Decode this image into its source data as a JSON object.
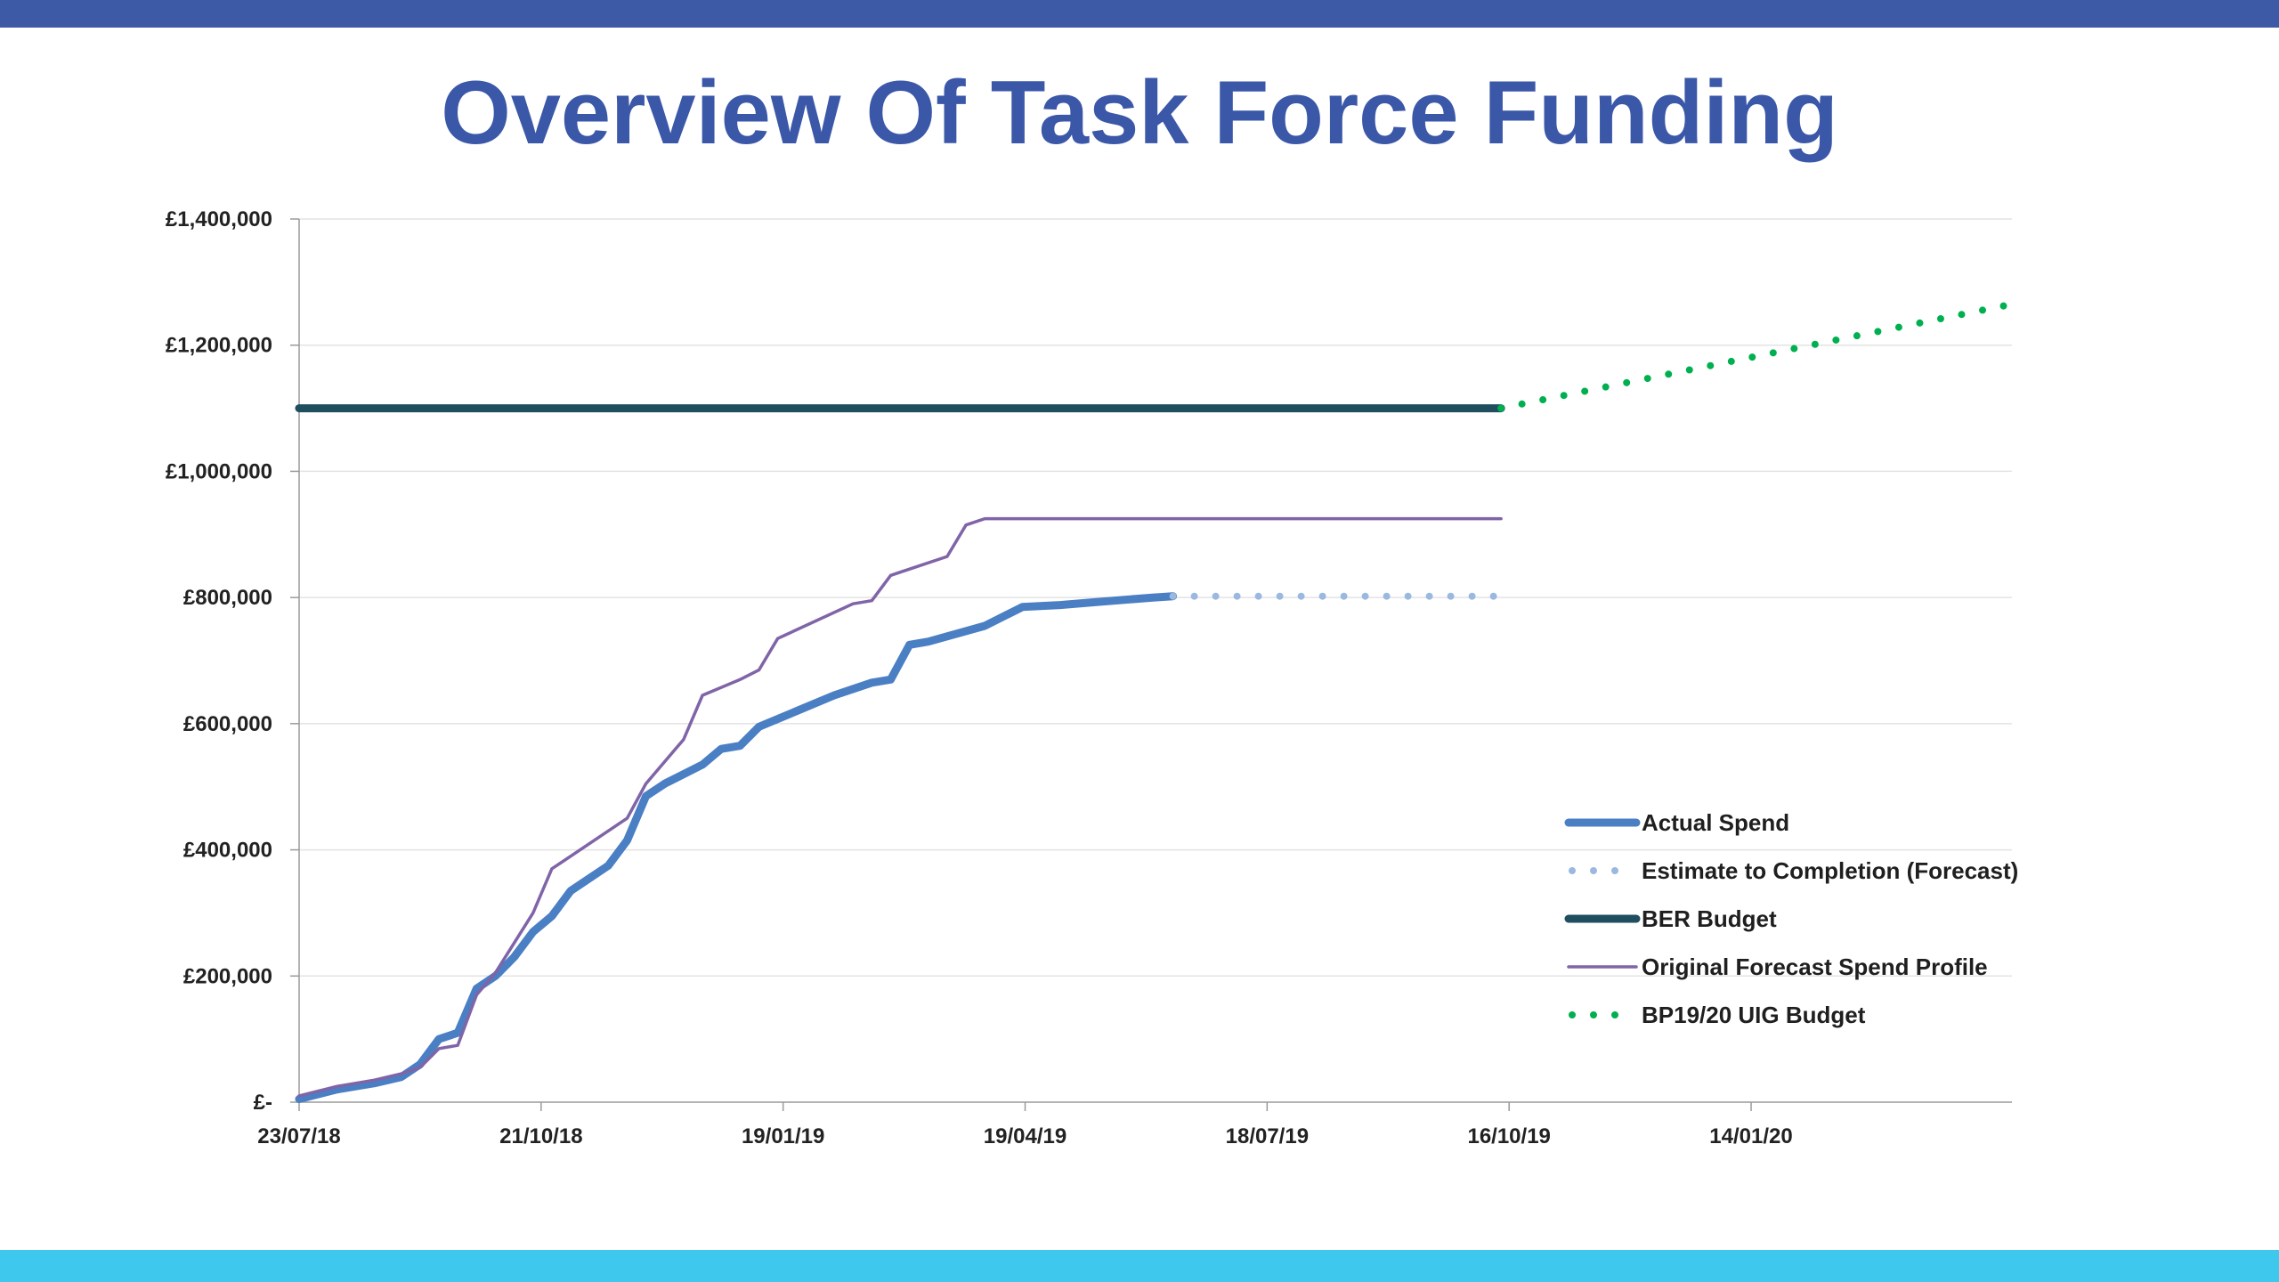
{
  "slide": {
    "title": "Overview Of Task Force Funding",
    "colors": {
      "top_band": "#3d5aa6",
      "bottom_band": "#3fc8ee",
      "title": "#3b57a8"
    }
  },
  "chart_data": {
    "type": "line",
    "title": "",
    "xlabel": "",
    "ylabel": "",
    "x_axis": {
      "type": "date",
      "range": [
        "2018-07-23",
        "2020-04-20"
      ],
      "tick_values": [
        "2018-07-23",
        "2018-10-21",
        "2019-01-19",
        "2019-04-19",
        "2019-07-18",
        "2019-10-16",
        "2020-01-14"
      ],
      "tick_labels": [
        "23/07/18",
        "21/10/18",
        "19/01/19",
        "19/04/19",
        "18/07/19",
        "16/10/19",
        "14/01/20"
      ]
    },
    "y_axis": {
      "range": [
        0,
        1400000
      ],
      "tick_values": [
        0,
        200000,
        400000,
        600000,
        800000,
        1000000,
        1200000,
        1400000
      ],
      "tick_labels": [
        "£-",
        "£200,000",
        "£400,000",
        "£600,000",
        "£800,000",
        "£1,000,000",
        "£1,200,000",
        "£1,400,000"
      ]
    },
    "grid": "horizontal",
    "legend_position": "bottom-right",
    "series": [
      {
        "name": "Actual Spend",
        "color": "#4a7fc4",
        "style": "solid-thick",
        "points": [
          [
            "2018-07-23",
            5000
          ],
          [
            "2018-08-06",
            20000
          ],
          [
            "2018-08-20",
            30000
          ],
          [
            "2018-08-30",
            40000
          ],
          [
            "2018-09-06",
            60000
          ],
          [
            "2018-09-13",
            100000
          ],
          [
            "2018-09-20",
            110000
          ],
          [
            "2018-09-27",
            180000
          ],
          [
            "2018-10-04",
            200000
          ],
          [
            "2018-10-11",
            230000
          ],
          [
            "2018-10-18",
            270000
          ],
          [
            "2018-10-25",
            295000
          ],
          [
            "2018-11-01",
            335000
          ],
          [
            "2018-11-15",
            375000
          ],
          [
            "2018-11-22",
            415000
          ],
          [
            "2018-11-29",
            485000
          ],
          [
            "2018-12-06",
            505000
          ],
          [
            "2018-12-20",
            535000
          ],
          [
            "2018-12-27",
            560000
          ],
          [
            "2019-01-03",
            565000
          ],
          [
            "2019-01-10",
            595000
          ],
          [
            "2019-01-24",
            620000
          ],
          [
            "2019-02-07",
            645000
          ],
          [
            "2019-02-21",
            665000
          ],
          [
            "2019-02-28",
            670000
          ],
          [
            "2019-03-07",
            725000
          ],
          [
            "2019-03-14",
            730000
          ],
          [
            "2019-04-04",
            755000
          ],
          [
            "2019-04-11",
            770000
          ],
          [
            "2019-04-18",
            785000
          ],
          [
            "2019-05-02",
            788000
          ],
          [
            "2019-05-16",
            793000
          ],
          [
            "2019-06-06",
            800000
          ],
          [
            "2019-06-13",
            802000
          ]
        ]
      },
      {
        "name": "Estimate to Completion (Forecast)",
        "color": "#9bb9e0",
        "style": "dotted",
        "points": [
          [
            "2019-06-13",
            802000
          ],
          [
            "2019-10-13",
            802000
          ]
        ]
      },
      {
        "name": "BER Budget",
        "color": "#1f4e5f",
        "style": "solid-thick",
        "points": [
          [
            "2018-07-23",
            1100000
          ],
          [
            "2019-10-13",
            1100000
          ]
        ]
      },
      {
        "name": "Original Forecast Spend Profile",
        "color": "#8064a8",
        "style": "solid-thin",
        "points": [
          [
            "2018-07-23",
            10000
          ],
          [
            "2018-08-06",
            25000
          ],
          [
            "2018-08-20",
            35000
          ],
          [
            "2018-08-30",
            45000
          ],
          [
            "2018-09-06",
            55000
          ],
          [
            "2018-09-13",
            85000
          ],
          [
            "2018-09-20",
            90000
          ],
          [
            "2018-09-27",
            170000
          ],
          [
            "2018-10-04",
            205000
          ],
          [
            "2018-10-18",
            300000
          ],
          [
            "2018-10-25",
            370000
          ],
          [
            "2018-11-01",
            390000
          ],
          [
            "2018-11-22",
            450000
          ],
          [
            "2018-11-29",
            505000
          ],
          [
            "2018-12-13",
            575000
          ],
          [
            "2018-12-20",
            645000
          ],
          [
            "2019-01-03",
            670000
          ],
          [
            "2019-01-10",
            685000
          ],
          [
            "2019-01-17",
            735000
          ],
          [
            "2019-02-14",
            790000
          ],
          [
            "2019-02-21",
            795000
          ],
          [
            "2019-02-28",
            835000
          ],
          [
            "2019-03-21",
            865000
          ],
          [
            "2019-03-28",
            915000
          ],
          [
            "2019-04-04",
            925000
          ],
          [
            "2019-10-13",
            925000
          ]
        ]
      },
      {
        "name": "BP19/20 UIG Budget",
        "color": "#00b050",
        "style": "dotted",
        "points": [
          [
            "2019-10-13",
            1100000
          ],
          [
            "2020-04-20",
            1265000
          ]
        ]
      }
    ]
  }
}
